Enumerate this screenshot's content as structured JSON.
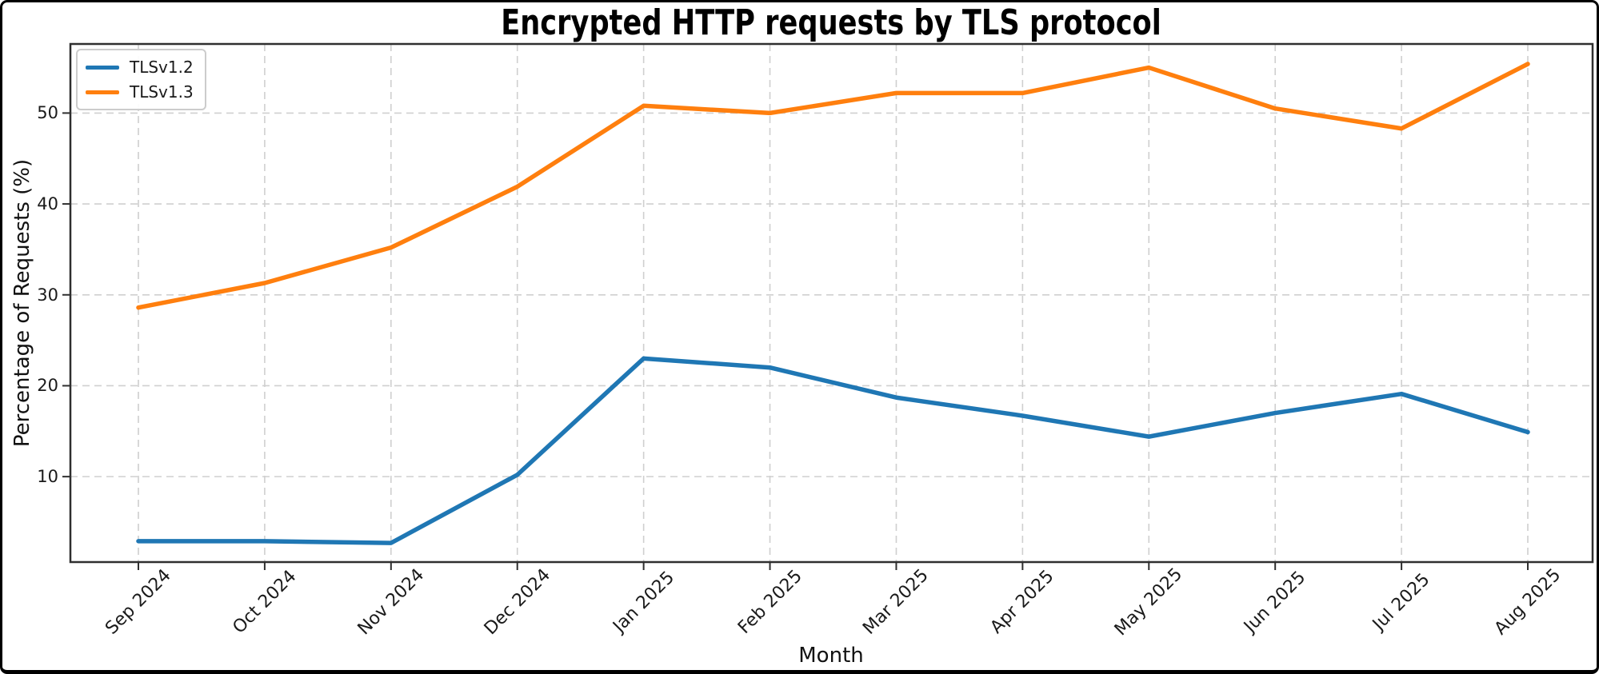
{
  "chart_data": {
    "type": "line",
    "title": "Encrypted HTTP requests by TLS protocol",
    "xlabel": "Month",
    "ylabel": "Percentage of Requests (%)",
    "categories": [
      "Sep 2024",
      "Oct 2024",
      "Nov 2024",
      "Dec 2024",
      "Jan 2025",
      "Feb 2025",
      "Mar 2025",
      "Apr 2025",
      "May 2025",
      "Jun 2025",
      "Jul 2025",
      "Aug 2025"
    ],
    "series": [
      {
        "name": "TLSv1.2",
        "color": "#1f77b4",
        "values": [
          2.9,
          2.9,
          2.7,
          10.2,
          23.0,
          22.0,
          18.7,
          16.7,
          14.4,
          17.0,
          19.1,
          14.9
        ]
      },
      {
        "name": "TLSv1.3",
        "color": "#ff7f0e",
        "values": [
          28.6,
          31.3,
          35.2,
          41.9,
          50.8,
          50.0,
          52.2,
          52.2,
          55.0,
          50.5,
          48.3,
          55.4
        ]
      }
    ],
    "yticks": [
      10,
      20,
      30,
      40,
      50
    ],
    "ylim": [
      0.6,
      57.6
    ],
    "grid": "dashed-both-axes",
    "grid_color": "#cfcfcf",
    "spine_color": "#2f2f2f",
    "legend_position": "upper left",
    "x_tick_rotation_deg": 45
  }
}
